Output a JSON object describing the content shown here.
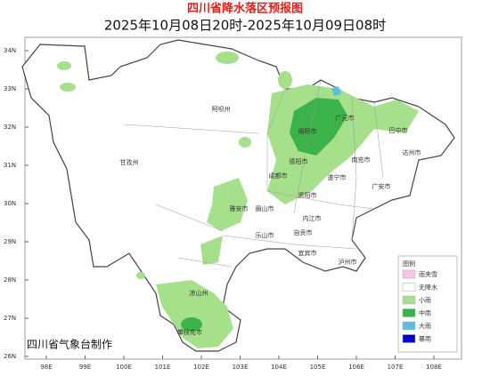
{
  "title": "四川省降水落区预报图",
  "subtitle": "2025年10月08日20时-2025年10月09日08时",
  "lat_labels": [
    "34N",
    "33N",
    "32N",
    "31N",
    "30N",
    "29N",
    "28N",
    "27N",
    "26N"
  ],
  "lon_labels": [
    "98E",
    "99E",
    "100E",
    "101E",
    "102E",
    "103E",
    "104E",
    "105E",
    "106E",
    "107E",
    "108E"
  ],
  "cities": [
    "阿坝州",
    "甘孜州",
    "广元市",
    "巴中市",
    "绵阳市",
    "南充市",
    "达州市",
    "德阳市",
    "成都市",
    "遂宁市",
    "广安市",
    "雅安市",
    "眉山市",
    "资阳市",
    "内江市",
    "乐山市",
    "自贡市",
    "宜宾市",
    "泸州市",
    "凉山州",
    "攀枝花市"
  ],
  "legend": {
    "title": "图例",
    "items": [
      "雨夹雪",
      "无降水",
      "小雨",
      "中雨",
      "大雨",
      "暴雨"
    ]
  },
  "footer": "四川省气象台制作"
}
